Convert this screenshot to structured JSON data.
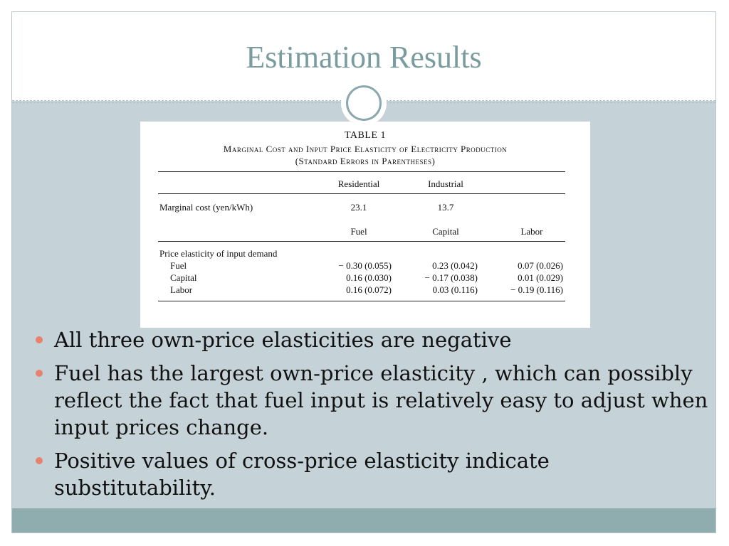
{
  "slide": {
    "title": "Estimation Results",
    "colors": {
      "title": "#7a9c9e",
      "content_background": "#c5d2d8",
      "footer_band": "#8fadaf",
      "bullet": "#e8826f"
    }
  },
  "table": {
    "label": "TABLE 1",
    "caption_line1": "Marginal Cost and Input Price Elasticity of Electricity Production",
    "caption_line2": "(Standard Errors in Parentheses)",
    "header1": [
      "Residential",
      "Industrial"
    ],
    "mc_row": {
      "label": "Marginal cost (yen/kWh)",
      "residential": "23.1",
      "industrial": "13.7"
    },
    "header2": [
      "Fuel",
      "Capital",
      "Labor"
    ],
    "section_label": "Price elasticity of input demand",
    "rows": [
      {
        "label": "Fuel",
        "fuel": "− 0.30 (0.055)",
        "capital": "0.23 (0.042)",
        "labor": "0.07 (0.026)"
      },
      {
        "label": "Capital",
        "fuel": "0.16 (0.030)",
        "capital": "− 0.17 (0.038)",
        "labor": "0.01 (0.029)"
      },
      {
        "label": "Labor",
        "fuel": "0.16 (0.072)",
        "capital": "0.03 (0.116)",
        "labor": "− 0.19 (0.116)"
      }
    ]
  },
  "bullets": [
    "All three own-price elasticities are negative",
    "Fuel has the largest own-price elasticity , which can possibly reflect the fact that fuel input is relatively easy to adjust when input prices change.",
    "Positive values of cross-price elasticity indicate substitutability."
  ]
}
